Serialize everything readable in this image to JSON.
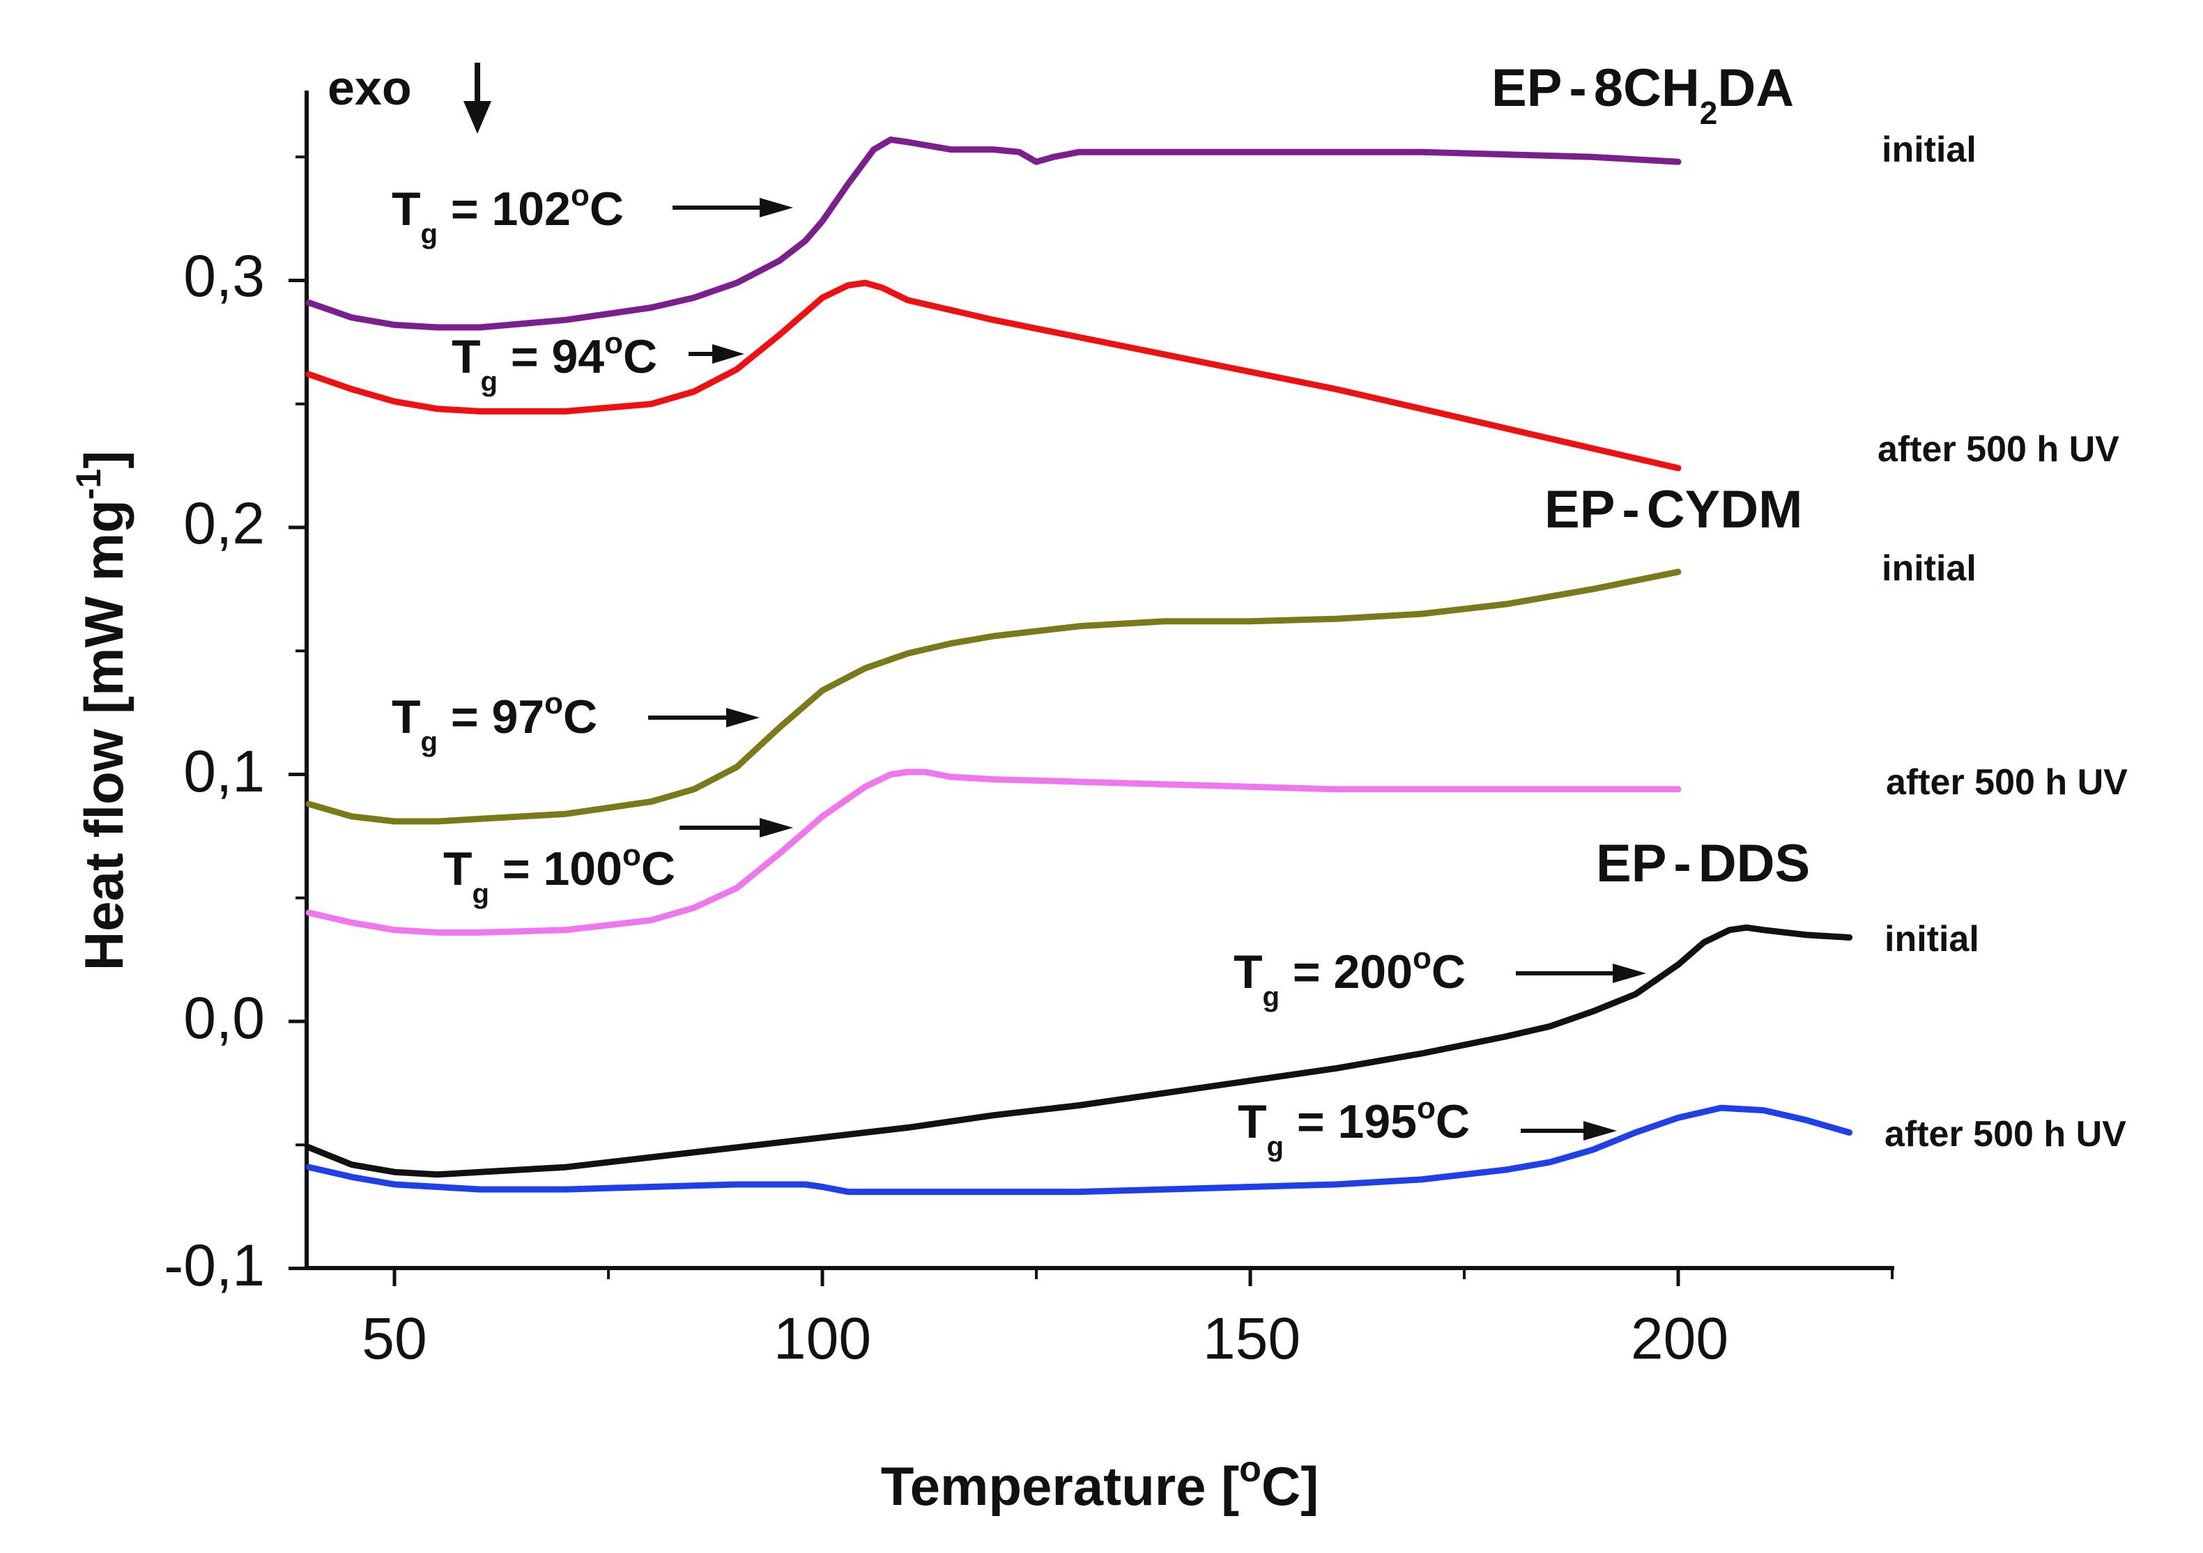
{
  "chart_data": {
    "type": "line",
    "xlabel": "Temperature",
    "xunit_open": "[",
    "xunit_sup": "o",
    "xunit_close": "C]",
    "ylabel": "Heat flow [mW mg",
    "ylabel_sup": "-1",
    "ylabel_close": "]",
    "xlim": [
      40,
      225
    ],
    "ylim": [
      -0.1,
      0.36
    ],
    "xticks": [
      50,
      100,
      150,
      200
    ],
    "xtick_labels": [
      "50",
      "100",
      "150",
      "200"
    ],
    "yticks": [
      -0.1,
      0.0,
      0.1,
      0.2,
      0.3
    ],
    "ytick_labels": [
      "-0,1",
      "0,0",
      "0,1",
      "0,2",
      "0,3"
    ],
    "exo_label": "exo",
    "series": [
      {
        "name": "EP-8CH2DA initial",
        "color": "#7b1f8f",
        "x": [
          40,
          45,
          50,
          55,
          60,
          70,
          80,
          85,
          90,
          95,
          98,
          100,
          103,
          106,
          108,
          110,
          115,
          120,
          123,
          125,
          127,
          130,
          140,
          150,
          160,
          170,
          180,
          190,
          200
        ],
        "y": [
          0.291,
          0.285,
          0.282,
          0.281,
          0.281,
          0.284,
          0.289,
          0.293,
          0.299,
          0.308,
          0.316,
          0.324,
          0.339,
          0.353,
          0.357,
          0.356,
          0.353,
          0.353,
          0.352,
          0.348,
          0.35,
          0.352,
          0.352,
          0.352,
          0.352,
          0.352,
          0.351,
          0.35,
          0.348
        ]
      },
      {
        "name": "EP-8CH2DA after 500 h UV",
        "color": "#ee1111",
        "x": [
          40,
          45,
          50,
          55,
          60,
          70,
          80,
          85,
          90,
          95,
          98,
          100,
          103,
          105,
          107,
          110,
          115,
          120,
          130,
          140,
          150,
          160,
          170,
          180,
          190,
          200
        ],
        "y": [
          0.262,
          0.256,
          0.251,
          0.248,
          0.247,
          0.247,
          0.25,
          0.255,
          0.264,
          0.278,
          0.287,
          0.293,
          0.298,
          0.299,
          0.297,
          0.292,
          0.288,
          0.284,
          0.277,
          0.27,
          0.263,
          0.256,
          0.248,
          0.24,
          0.232,
          0.224
        ]
      },
      {
        "name": "EP-CYDM initial",
        "color": "#7a7a1a",
        "x": [
          40,
          45,
          50,
          55,
          60,
          70,
          80,
          85,
          90,
          95,
          100,
          105,
          110,
          115,
          120,
          130,
          140,
          150,
          160,
          170,
          180,
          190,
          200
        ],
        "y": [
          0.088,
          0.083,
          0.081,
          0.081,
          0.082,
          0.084,
          0.089,
          0.094,
          0.103,
          0.119,
          0.134,
          0.143,
          0.149,
          0.153,
          0.156,
          0.16,
          0.162,
          0.162,
          0.163,
          0.165,
          0.169,
          0.175,
          0.182
        ]
      },
      {
        "name": "EP-CYDM after 500 h UV",
        "color": "#ee77ee",
        "x": [
          40,
          45,
          50,
          55,
          60,
          70,
          80,
          85,
          90,
          95,
          100,
          105,
          108,
          110,
          112,
          115,
          120,
          130,
          140,
          150,
          160,
          170,
          180,
          190,
          200
        ],
        "y": [
          0.044,
          0.04,
          0.037,
          0.036,
          0.036,
          0.037,
          0.041,
          0.046,
          0.054,
          0.068,
          0.083,
          0.095,
          0.1,
          0.101,
          0.101,
          0.099,
          0.098,
          0.097,
          0.096,
          0.095,
          0.094,
          0.094,
          0.094,
          0.094,
          0.094
        ]
      },
      {
        "name": "EP-DDS initial",
        "color": "#111111",
        "x": [
          40,
          45,
          50,
          55,
          60,
          70,
          80,
          90,
          100,
          110,
          120,
          130,
          140,
          150,
          160,
          170,
          180,
          185,
          190,
          195,
          200,
          203,
          206,
          208,
          210,
          215,
          220
        ],
        "y": [
          -0.051,
          -0.058,
          -0.061,
          -0.062,
          -0.061,
          -0.059,
          -0.055,
          -0.051,
          -0.047,
          -0.043,
          -0.038,
          -0.034,
          -0.029,
          -0.024,
          -0.019,
          -0.013,
          -0.006,
          -0.002,
          0.004,
          0.011,
          0.023,
          0.032,
          0.037,
          0.038,
          0.037,
          0.035,
          0.034
        ]
      },
      {
        "name": "EP-DDS after 500 h UV",
        "color": "#1f3fe8",
        "x": [
          40,
          45,
          50,
          55,
          60,
          70,
          80,
          90,
          95,
          98,
          100,
          103,
          105,
          110,
          120,
          130,
          140,
          150,
          160,
          170,
          180,
          185,
          190,
          195,
          200,
          205,
          210,
          215,
          220
        ],
        "y": [
          -0.059,
          -0.063,
          -0.066,
          -0.067,
          -0.068,
          -0.068,
          -0.067,
          -0.066,
          -0.066,
          -0.066,
          -0.067,
          -0.069,
          -0.069,
          -0.069,
          -0.069,
          -0.069,
          -0.068,
          -0.067,
          -0.066,
          -0.064,
          -0.06,
          -0.057,
          -0.052,
          -0.045,
          -0.039,
          -0.035,
          -0.036,
          -0.04,
          -0.045
        ]
      }
    ],
    "sample_titles": [
      {
        "prefix": "EP",
        "dash": "-",
        "main": "8CH",
        "sub": "2",
        "suffix": "DA"
      },
      {
        "prefix": "EP",
        "dash": "-",
        "main": "CYDM",
        "sub": "",
        "suffix": ""
      },
      {
        "prefix": "EP",
        "dash": "-",
        "main": "DDS",
        "sub": "",
        "suffix": ""
      }
    ],
    "curve_labels": [
      "initial",
      "after 500 h UV",
      "initial",
      "after 500 h UV",
      "initial",
      "after 500 h UV"
    ],
    "tg_annotations": [
      {
        "symbol": "T",
        "sub": "g",
        "value": " = 102",
        "deg": "o",
        "unit": "C"
      },
      {
        "symbol": "T",
        "sub": "g",
        "value": " = 94",
        "deg": "o",
        "unit": "C"
      },
      {
        "symbol": "T",
        "sub": "g",
        "value": " = 97",
        "deg": "o",
        "unit": "C"
      },
      {
        "symbol": "T",
        "sub": "g",
        "value": " = 100",
        "deg": "o",
        "unit": "C"
      },
      {
        "symbol": "T",
        "sub": "g",
        "value": " = 200",
        "deg": "o",
        "unit": "C"
      },
      {
        "symbol": "T",
        "sub": "g",
        "value": " = 195",
        "deg": "o",
        "unit": "C"
      }
    ]
  }
}
